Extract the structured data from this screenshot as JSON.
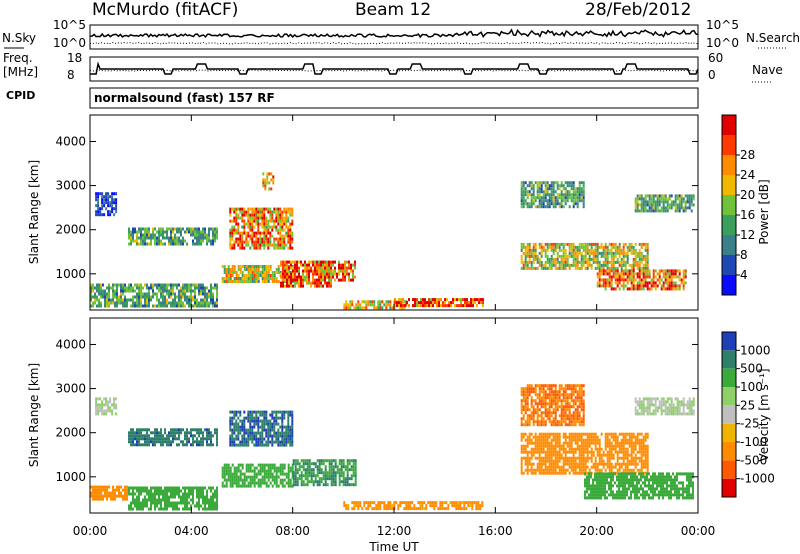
{
  "header": {
    "station": "McMurdo (fitACF)",
    "beam": "Beam 12",
    "date": "28/Feb/2012"
  },
  "noise_panel": {
    "left_label": "N.Sky",
    "right_label": "N.Search",
    "left_ticks": [
      "10^5",
      "10^0"
    ],
    "right_ticks": [
      "10^5",
      "10^0"
    ]
  },
  "freq_panel": {
    "left_label_1": "Freq.",
    "left_label_2": "[MHz]",
    "right_label": "Nave",
    "left_ticks": [
      "18",
      "8"
    ],
    "right_ticks": [
      "60",
      "0"
    ]
  },
  "cpid_panel": {
    "label": "CPID",
    "program": "normalsound (fast) 157 RF"
  },
  "chart_data": [
    {
      "type": "heatmap",
      "title": "",
      "ylabel": "Slant Range [km]",
      "xlabel": "",
      "ylim": [
        180,
        4600
      ],
      "yticks": [
        "1000",
        "2000",
        "3000",
        "4000"
      ],
      "colorbar": {
        "label": "Power [dB]",
        "ticks": [
          "4",
          "8",
          "12",
          "16",
          "20",
          "24",
          "28"
        ],
        "colors": [
          "#0a0aff",
          "#1f48b4",
          "#3b7f8a",
          "#3a9f5c",
          "#6fc23a",
          "#f0b800",
          "#ff8c00",
          "#ff3a00",
          "#e00000"
        ]
      },
      "echo_regions": [
        {
          "t": [
            0.0,
            5.0
          ],
          "r": [
            280,
            780
          ],
          "value": 14
        },
        {
          "t": [
            0.2,
            1.0
          ],
          "r": [
            2350,
            2850
          ],
          "value": 6
        },
        {
          "t": [
            1.5,
            5.0
          ],
          "r": [
            1650,
            2050
          ],
          "value": 14
        },
        {
          "t": [
            5.5,
            8.0
          ],
          "r": [
            1600,
            2500
          ],
          "value": 26
        },
        {
          "t": [
            5.2,
            8.0
          ],
          "r": [
            800,
            1200
          ],
          "value": 20
        },
        {
          "t": [
            7.5,
            9.5
          ],
          "r": [
            700,
            1300
          ],
          "value": 30
        },
        {
          "t": [
            9.0,
            10.5
          ],
          "r": [
            850,
            1300
          ],
          "value": 28
        },
        {
          "t": [
            6.8,
            7.2
          ],
          "r": [
            2900,
            3300
          ],
          "value": 26
        },
        {
          "t": [
            10.0,
            12.5
          ],
          "r": [
            250,
            400
          ],
          "value": 22
        },
        {
          "t": [
            12.0,
            15.5
          ],
          "r": [
            250,
            450
          ],
          "value": 30
        },
        {
          "t": [
            17.0,
            19.5
          ],
          "r": [
            2500,
            3100
          ],
          "value": 14
        },
        {
          "t": [
            17.0,
            22.0
          ],
          "r": [
            1100,
            1700
          ],
          "value": 20
        },
        {
          "t": [
            20.0,
            23.5
          ],
          "r": [
            650,
            1100
          ],
          "value": 28
        },
        {
          "t": [
            21.5,
            23.8
          ],
          "r": [
            2400,
            2800
          ],
          "value": 14
        }
      ]
    },
    {
      "type": "heatmap",
      "title": "",
      "ylabel": "Slant Range [km]",
      "xlabel": "Time UT",
      "ylim": [
        180,
        4600
      ],
      "yticks": [
        "1000",
        "2000",
        "3000",
        "4000"
      ],
      "xticks": [
        "00:00",
        "04:00",
        "08:00",
        "12:00",
        "16:00",
        "20:00",
        "00:00"
      ],
      "colorbar": {
        "label": "Velocity [m s⁻¹]",
        "ticks": [
          "1000",
          "500",
          "100",
          "25",
          "-25",
          "-100",
          "-500",
          "-1000"
        ],
        "colors": [
          "#1f3fb8",
          "#2e7f6a",
          "#3aaa3a",
          "#8fd06a",
          "#bfbfbf",
          "#f0b400",
          "#ff8c00",
          "#ff5a00",
          "#e00000"
        ]
      },
      "echo_regions": [
        {
          "t": [
            0.0,
            1.5
          ],
          "r": [
            500,
            800
          ],
          "value": -100
        },
        {
          "t": [
            1.5,
            5.0
          ],
          "r": [
            280,
            780
          ],
          "value": 100
        },
        {
          "t": [
            0.2,
            1.0
          ],
          "r": [
            2400,
            2800
          ],
          "value": 0
        },
        {
          "t": [
            1.5,
            5.0
          ],
          "r": [
            1750,
            2100
          ],
          "value": 600
        },
        {
          "t": [
            5.5,
            8.0
          ],
          "r": [
            1700,
            2500
          ],
          "value": 700
        },
        {
          "t": [
            5.2,
            8.0
          ],
          "r": [
            800,
            1300
          ],
          "value": 200
        },
        {
          "t": [
            8.0,
            10.5
          ],
          "r": [
            800,
            1400
          ],
          "value": 300
        },
        {
          "t": [
            10.0,
            15.5
          ],
          "r": [
            250,
            450
          ],
          "value": -80
        },
        {
          "t": [
            17.0,
            19.5
          ],
          "r": [
            2200,
            3100
          ],
          "value": -300
        },
        {
          "t": [
            17.0,
            22.0
          ],
          "r": [
            1100,
            2000
          ],
          "value": -200
        },
        {
          "t": [
            19.5,
            23.8
          ],
          "r": [
            500,
            1100
          ],
          "value": 120
        },
        {
          "t": [
            21.5,
            23.8
          ],
          "r": [
            2400,
            2800
          ],
          "value": 0
        }
      ]
    }
  ],
  "colors": {
    "axis": "#000000",
    "background": "#ffffff"
  }
}
